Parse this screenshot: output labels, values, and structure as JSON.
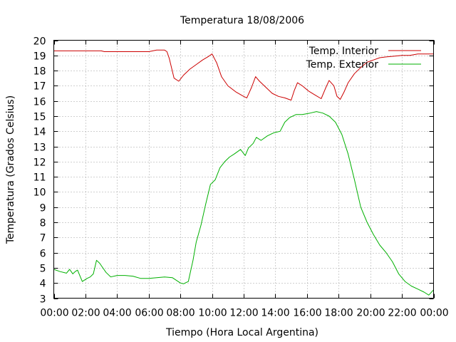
{
  "chart_data": {
    "type": "line",
    "title": "Temperatura 18/08/2006",
    "xlabel": "Tiempo (Hora Local Argentina)",
    "ylabel": "Temperatura (Grados Celsius)",
    "xlim": [
      0,
      24
    ],
    "ylim": [
      3,
      20
    ],
    "x_tick_labels": [
      "00:00",
      "02:00",
      "04:00",
      "06:00",
      "08:00",
      "10:00",
      "12:00",
      "14:00",
      "16:00",
      "18:00",
      "20:00",
      "22:00",
      "00:00"
    ],
    "y_ticks": [
      3,
      4,
      5,
      6,
      7,
      8,
      9,
      10,
      11,
      12,
      13,
      14,
      15,
      16,
      17,
      18,
      19,
      20
    ],
    "grid": true,
    "legend_position": "top-right",
    "series": [
      {
        "name": "Temp. Interior",
        "color": "#cc0000",
        "x": [
          0,
          1.5,
          3,
          3.2,
          5,
          6,
          6.5,
          7,
          7.15,
          7.3,
          7.6,
          7.9,
          8.2,
          8.6,
          9,
          9.4,
          9.8,
          10,
          10.3,
          10.6,
          11,
          11.5,
          12,
          12.2,
          12.5,
          12.75,
          13,
          13.4,
          13.8,
          14.2,
          14.6,
          15,
          15.2,
          15.4,
          15.7,
          16.1,
          16.5,
          16.9,
          17.2,
          17.4,
          17.7,
          17.9,
          18.1,
          18.35,
          18.6,
          19,
          19.4,
          19.8,
          20.2,
          20.6,
          21,
          21.5,
          22,
          22.5,
          23,
          23.5,
          24
        ],
        "y": [
          19.3,
          19.3,
          19.3,
          19.25,
          19.25,
          19.25,
          19.35,
          19.35,
          19.25,
          18.8,
          17.5,
          17.3,
          17.7,
          18.1,
          18.4,
          18.7,
          18.95,
          19.1,
          18.5,
          17.6,
          17,
          16.6,
          16.3,
          16.2,
          16.9,
          17.6,
          17.3,
          16.9,
          16.5,
          16.3,
          16.2,
          16.05,
          16.7,
          17.2,
          17,
          16.65,
          16.4,
          16.15,
          16.9,
          17.35,
          17,
          16.3,
          16.1,
          16.6,
          17.2,
          17.8,
          18.2,
          18.55,
          18.7,
          18.85,
          18.9,
          18.95,
          19,
          19,
          19.1,
          19.1,
          19.1
        ]
      },
      {
        "name": "Temp. Exterior",
        "color": "#00b000",
        "x": [
          0,
          0.4,
          0.8,
          1.0,
          1.2,
          1.35,
          1.5,
          1.8,
          2.1,
          2.3,
          2.5,
          2.7,
          2.9,
          3.1,
          3.3,
          3.6,
          4,
          4.5,
          5,
          5.5,
          6,
          6.5,
          7,
          7.5,
          8,
          8.2,
          8.5,
          8.8,
          9,
          9.3,
          9.6,
          9.9,
          10.2,
          10.5,
          10.8,
          11.1,
          11.4,
          11.8,
          12.1,
          12.3,
          12.6,
          12.8,
          13.1,
          13.5,
          13.9,
          14.3,
          14.6,
          14.9,
          15.3,
          15.7,
          16.2,
          16.6,
          17,
          17.4,
          17.8,
          18.2,
          18.6,
          19,
          19.4,
          19.8,
          20.2,
          20.6,
          21,
          21.4,
          21.8,
          22.2,
          22.6,
          23,
          23.4,
          23.7,
          24
        ],
        "y": [
          4.9,
          4.75,
          4.65,
          4.9,
          4.6,
          4.75,
          4.85,
          4.1,
          4.3,
          4.4,
          4.6,
          5.5,
          5.3,
          5.0,
          4.7,
          4.4,
          4.5,
          4.5,
          4.45,
          4.3,
          4.3,
          4.35,
          4.4,
          4.35,
          4.0,
          3.95,
          4.1,
          5.5,
          6.7,
          7.8,
          9.2,
          10.5,
          10.8,
          11.6,
          12.0,
          12.3,
          12.5,
          12.8,
          12.4,
          12.9,
          13.2,
          13.6,
          13.4,
          13.7,
          13.9,
          14.0,
          14.6,
          14.9,
          15.1,
          15.1,
          15.2,
          15.3,
          15.2,
          15.0,
          14.6,
          13.8,
          12.5,
          10.8,
          9.0,
          8.0,
          7.2,
          6.5,
          6.0,
          5.4,
          4.6,
          4.1,
          3.8,
          3.6,
          3.4,
          3.2,
          3.55
        ]
      }
    ]
  }
}
